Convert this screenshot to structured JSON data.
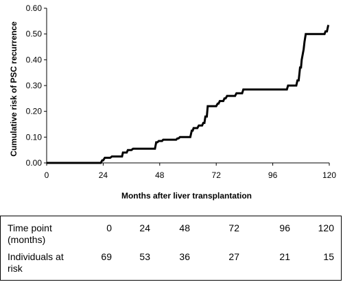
{
  "chart_data": {
    "type": "line",
    "title": "",
    "xlabel": "Months after liver transplantation",
    "ylabel": "Cumulative risk of PSC recurrence",
    "xlim": [
      0,
      120
    ],
    "ylim": [
      0,
      0.6
    ],
    "x_ticks": [
      "0",
      "24",
      "48",
      "72",
      "96",
      "120"
    ],
    "y_ticks": [
      "0.00",
      "0.10",
      "0.20",
      "0.30",
      "0.40",
      "0.50",
      "0.60"
    ],
    "grid": false,
    "series": [
      {
        "x": [
          0,
          23,
          23.6,
          24,
          24.7,
          27,
          27.7,
          32,
          32.4,
          34,
          34.5,
          36,
          36.7,
          46,
          46.5,
          47,
          47.6,
          49,
          49.5,
          55,
          55.5,
          56,
          56.6,
          61,
          61.6,
          62,
          62.4,
          64,
          64.6,
          66,
          66.5,
          67,
          67.4,
          68,
          68.4,
          72,
          72.6,
          73,
          73.5,
          75,
          75.5,
          76,
          76.6,
          80,
          80.6,
          83,
          83.5,
          102,
          102.5,
          106,
          106.5,
          107,
          107.3,
          107.6,
          108,
          108.3,
          108.7,
          109.1,
          109.5,
          110,
          118,
          118.4,
          119,
          119.6
        ],
        "y": [
          0,
          0,
          0.01,
          0.01,
          0.02,
          0.02,
          0.025,
          0.025,
          0.04,
          0.04,
          0.05,
          0.05,
          0.055,
          0.055,
          0.08,
          0.08,
          0.085,
          0.085,
          0.09,
          0.09,
          0.095,
          0.095,
          0.1,
          0.1,
          0.125,
          0.125,
          0.135,
          0.135,
          0.145,
          0.145,
          0.155,
          0.155,
          0.18,
          0.18,
          0.22,
          0.22,
          0.23,
          0.23,
          0.24,
          0.24,
          0.25,
          0.25,
          0.26,
          0.26,
          0.27,
          0.27,
          0.285,
          0.285,
          0.3,
          0.3,
          0.32,
          0.32,
          0.345,
          0.37,
          0.37,
          0.4,
          0.42,
          0.44,
          0.47,
          0.5,
          0.5,
          0.51,
          0.51,
          0.535
        ]
      }
    ]
  },
  "risk_table": {
    "time_point_label": [
      "Time point",
      "(months)"
    ],
    "time_points": [
      "0",
      "24",
      "48",
      "72",
      "96",
      "120"
    ],
    "at_risk_label": [
      "Individuals at",
      "risk"
    ],
    "at_risk": [
      "69",
      "53",
      "36",
      "27",
      "21",
      "15"
    ]
  }
}
